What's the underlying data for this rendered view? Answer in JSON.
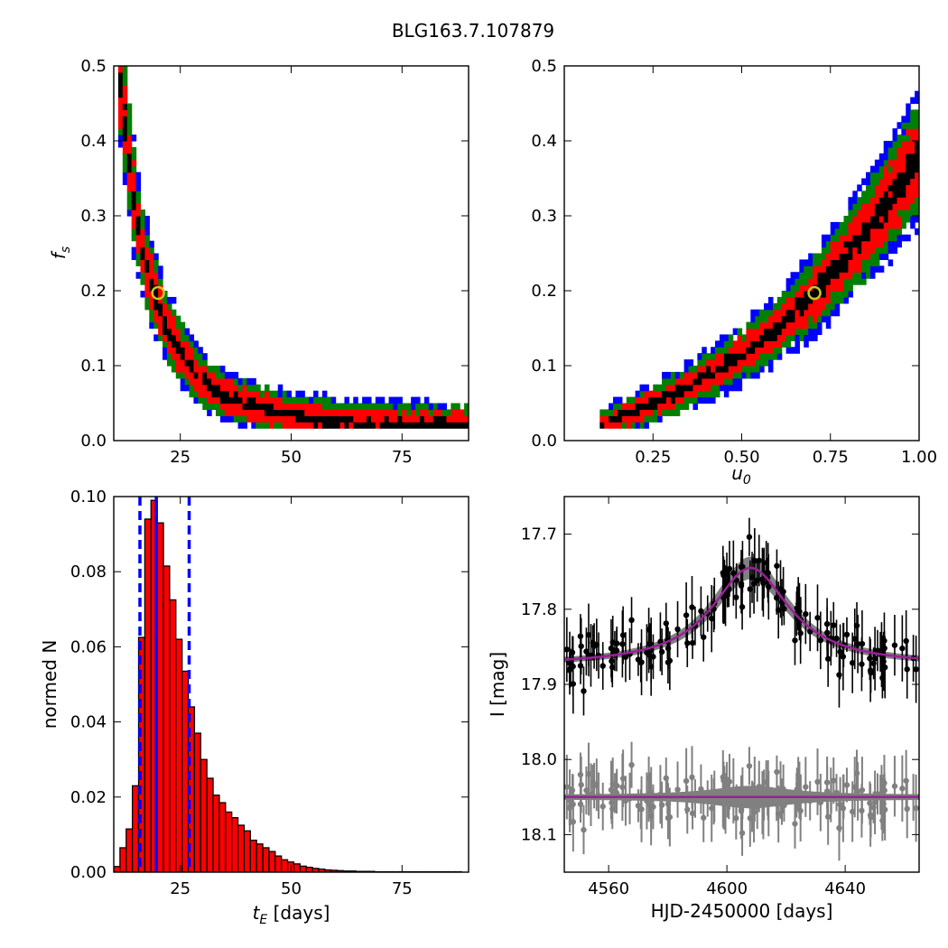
{
  "figure": {
    "title": "BLG163.7.107879"
  },
  "colors": {
    "red": "#ff0000",
    "green": "#008000",
    "blue": "#0000ff",
    "black": "#000000",
    "purple": "#9b1f9b",
    "gray": "#808080",
    "marker_edge": "#c8c820"
  },
  "chart_data": [
    {
      "id": "panel_tE_fs",
      "type": "heatmap",
      "description_levels": [
        "black",
        "red",
        "green",
        "blue"
      ],
      "xlabel": "",
      "ylabel": "f_s",
      "xlim": [
        10,
        90
      ],
      "ylim": [
        0,
        0.5
      ],
      "xticks": [
        25,
        50,
        75
      ],
      "yticks": [
        0.0,
        0.1,
        0.2,
        0.3,
        0.4,
        0.5
      ],
      "xtick_labels": [
        "25",
        "50",
        "75"
      ],
      "ytick_labels": [
        "0.0",
        "0.1",
        "0.2",
        "0.3",
        "0.4",
        "0.5"
      ],
      "best_fit": {
        "x": 20,
        "y": 0.197
      },
      "ridge": [
        [
          11,
          0.5
        ],
        [
          13,
          0.4
        ],
        [
          15,
          0.3
        ],
        [
          17,
          0.24
        ],
        [
          19,
          0.2
        ],
        [
          22,
          0.15
        ],
        [
          26,
          0.11
        ],
        [
          30,
          0.08
        ],
        [
          35,
          0.06
        ],
        [
          45,
          0.04
        ],
        [
          60,
          0.025
        ],
        [
          90,
          0.02
        ]
      ]
    },
    {
      "id": "panel_u0_fs",
      "type": "heatmap",
      "xlabel": "u_0",
      "ylabel": "",
      "xlim": [
        0,
        1
      ],
      "ylim": [
        0,
        0.5
      ],
      "xticks": [
        0.25,
        0.5,
        0.75,
        1.0
      ],
      "yticks": [
        0.0,
        0.1,
        0.2,
        0.3,
        0.4,
        0.5
      ],
      "xtick_labels": [
        "0.25",
        "0.50",
        "0.75",
        "1.00"
      ],
      "ytick_labels": [
        "0.0",
        "0.1",
        "0.2",
        "0.3",
        "0.4",
        "0.5"
      ],
      "best_fit": {
        "x": 0.705,
        "y": 0.197
      },
      "ridge": [
        [
          0.1,
          0.02
        ],
        [
          0.2,
          0.04
        ],
        [
          0.3,
          0.06
        ],
        [
          0.4,
          0.085
        ],
        [
          0.5,
          0.115
        ],
        [
          0.6,
          0.15
        ],
        [
          0.7,
          0.195
        ],
        [
          0.8,
          0.25
        ],
        [
          0.9,
          0.31
        ],
        [
          1.0,
          0.38
        ]
      ]
    },
    {
      "id": "panel_hist",
      "type": "bar",
      "xlabel": "t_E [days]",
      "ylabel": "normed N",
      "xlim": [
        10,
        90
      ],
      "ylim": [
        0,
        0.1
      ],
      "xticks": [
        25,
        50,
        75
      ],
      "yticks": [
        0.0,
        0.02,
        0.04,
        0.06,
        0.08,
        0.1
      ],
      "xtick_labels": [
        "25",
        "50",
        "75"
      ],
      "ytick_labels": [
        "0.00",
        "0.02",
        "0.04",
        "0.06",
        "0.08",
        "0.10"
      ],
      "bin_start": 10,
      "bin_width": 1.4,
      "values": [
        0.0015,
        0.0065,
        0.0115,
        0.023,
        0.0625,
        0.094,
        0.099,
        0.093,
        0.0815,
        0.0725,
        0.062,
        0.0535,
        0.044,
        0.037,
        0.03,
        0.025,
        0.0205,
        0.0185,
        0.016,
        0.0145,
        0.0125,
        0.011,
        0.0085,
        0.0075,
        0.0065,
        0.0055,
        0.0043,
        0.0033,
        0.0027,
        0.0022,
        0.0016,
        0.0013,
        0.001,
        0.0008,
        0.0006,
        0.0005,
        0.0004,
        0.0003,
        0.0003,
        0.0002,
        0.0002,
        0.0002,
        0.0001,
        0.0001,
        0.0001,
        0.0001,
        0.0001,
        0.0001,
        0.0001,
        0.0001,
        0.0001,
        0.0001,
        0.0001,
        0.0001,
        0.0001,
        0.0001
      ],
      "vlines": [
        {
          "x": 19.6,
          "style": "solid"
        },
        {
          "x": 15.9,
          "style": "dashed"
        },
        {
          "x": 27.0,
          "style": "dashed"
        }
      ]
    },
    {
      "id": "panel_lightcurve",
      "type": "scatter",
      "xlabel": "HJD-2450000 [days]",
      "ylabel": "I [mag]",
      "xlim": [
        4545,
        4665
      ],
      "ylim": [
        18.15,
        17.65
      ],
      "xticks": [
        4560,
        4600,
        4640
      ],
      "yticks": [
        17.7,
        17.8,
        17.9,
        18.0,
        18.1
      ],
      "xtick_labels": [
        "4560",
        "4600",
        "4640"
      ],
      "ytick_labels": [
        "17.7",
        "17.8",
        "17.9",
        "18.0",
        "18.1"
      ],
      "model": {
        "t0": 4608,
        "baseline": 17.875,
        "peak": 17.745,
        "tE": 16
      },
      "residual_offset": 18.05,
      "error_size": 0.03
    }
  ]
}
